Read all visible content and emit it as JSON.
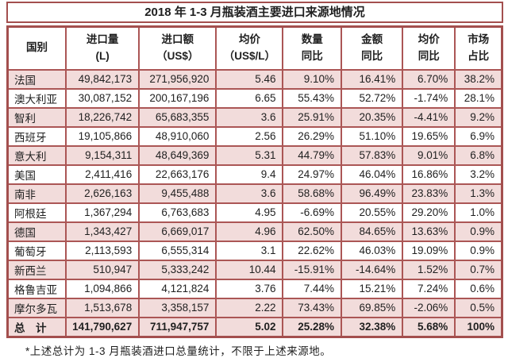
{
  "title": "2018 年 1-3 月瓶装酒主要进口来源地情况",
  "footnote": "*上述总计为 1-3 月瓶装酒进口总量统计，不限于上述来源地。",
  "colors": {
    "border": "#a34f4e",
    "row_pink": "#f2dcdb",
    "row_white": "#ffffff",
    "text": "#1f1f1f"
  },
  "table": {
    "columns": [
      {
        "key": "country",
        "lines": [
          "国别"
        ]
      },
      {
        "key": "volume",
        "lines": [
          "进口量",
          "(L)"
        ]
      },
      {
        "key": "value",
        "lines": [
          "进口额",
          "（US$）"
        ]
      },
      {
        "key": "avg_price",
        "lines": [
          "均价",
          "（US$/L）"
        ]
      },
      {
        "key": "volume_yoy",
        "lines": [
          "数量",
          "同比"
        ]
      },
      {
        "key": "value_yoy",
        "lines": [
          "金额",
          "同比"
        ]
      },
      {
        "key": "price_yoy",
        "lines": [
          "均价",
          "同比"
        ]
      },
      {
        "key": "market_share",
        "lines": [
          "市场",
          "占比"
        ]
      }
    ],
    "rows": [
      {
        "country": "法国",
        "volume": "49,842,173",
        "value": "271,956,920",
        "avg_price": "5.46",
        "volume_yoy": "9.10%",
        "value_yoy": "16.41%",
        "price_yoy": "6.70%",
        "market_share": "38.2%"
      },
      {
        "country": "澳大利亚",
        "volume": "30,087,152",
        "value": "200,167,196",
        "avg_price": "6.65",
        "volume_yoy": "55.43%",
        "value_yoy": "52.72%",
        "price_yoy": "-1.74%",
        "market_share": "28.1%"
      },
      {
        "country": "智利",
        "volume": "18,226,742",
        "value": "65,683,355",
        "avg_price": "3.6",
        "volume_yoy": "25.91%",
        "value_yoy": "20.35%",
        "price_yoy": "-4.41%",
        "market_share": "9.2%"
      },
      {
        "country": "西班牙",
        "volume": "19,105,866",
        "value": "48,910,060",
        "avg_price": "2.56",
        "volume_yoy": "26.29%",
        "value_yoy": "51.10%",
        "price_yoy": "19.65%",
        "market_share": "6.9%"
      },
      {
        "country": "意大利",
        "volume": "9,154,311",
        "value": "48,649,369",
        "avg_price": "5.31",
        "volume_yoy": "44.79%",
        "value_yoy": "57.83%",
        "price_yoy": "9.01%",
        "market_share": "6.8%"
      },
      {
        "country": "美国",
        "volume": "2,411,416",
        "value": "22,663,176",
        "avg_price": "9.4",
        "volume_yoy": "24.97%",
        "value_yoy": "46.04%",
        "price_yoy": "16.86%",
        "market_share": "3.2%"
      },
      {
        "country": "南非",
        "volume": "2,626,163",
        "value": "9,455,488",
        "avg_price": "3.6",
        "volume_yoy": "58.68%",
        "value_yoy": "96.49%",
        "price_yoy": "23.83%",
        "market_share": "1.3%"
      },
      {
        "country": "阿根廷",
        "volume": "1,367,294",
        "value": "6,763,683",
        "avg_price": "4.95",
        "volume_yoy": "-6.69%",
        "value_yoy": "20.55%",
        "price_yoy": "29.20%",
        "market_share": "1.0%"
      },
      {
        "country": "德国",
        "volume": "1,343,427",
        "value": "6,669,017",
        "avg_price": "4.96",
        "volume_yoy": "62.50%",
        "value_yoy": "84.65%",
        "price_yoy": "13.63%",
        "market_share": "0.9%"
      },
      {
        "country": "葡萄牙",
        "volume": "2,113,593",
        "value": "6,555,314",
        "avg_price": "3.1",
        "volume_yoy": "22.62%",
        "value_yoy": "46.03%",
        "price_yoy": "19.09%",
        "market_share": "0.9%"
      },
      {
        "country": "新西兰",
        "volume": "510,947",
        "value": "5,333,242",
        "avg_price": "10.44",
        "volume_yoy": "-15.91%",
        "value_yoy": "-14.64%",
        "price_yoy": "1.52%",
        "market_share": "0.7%"
      },
      {
        "country": "格鲁吉亚",
        "volume": "1,094,866",
        "value": "4,121,824",
        "avg_price": "3.76",
        "volume_yoy": "7.44%",
        "value_yoy": "15.21%",
        "price_yoy": "7.24%",
        "market_share": "0.6%"
      },
      {
        "country": "摩尔多瓦",
        "volume": "1,513,678",
        "value": "3,358,157",
        "avg_price": "2.22",
        "volume_yoy": "73.43%",
        "value_yoy": "69.85%",
        "price_yoy": "-2.06%",
        "market_share": "0.5%"
      }
    ],
    "total_row": {
      "country": "总　计",
      "volume": "141,790,627",
      "value": "711,947,757",
      "avg_price": "5.02",
      "volume_yoy": "25.28%",
      "value_yoy": "32.38%",
      "price_yoy": "5.68%",
      "market_share": "100%"
    }
  }
}
